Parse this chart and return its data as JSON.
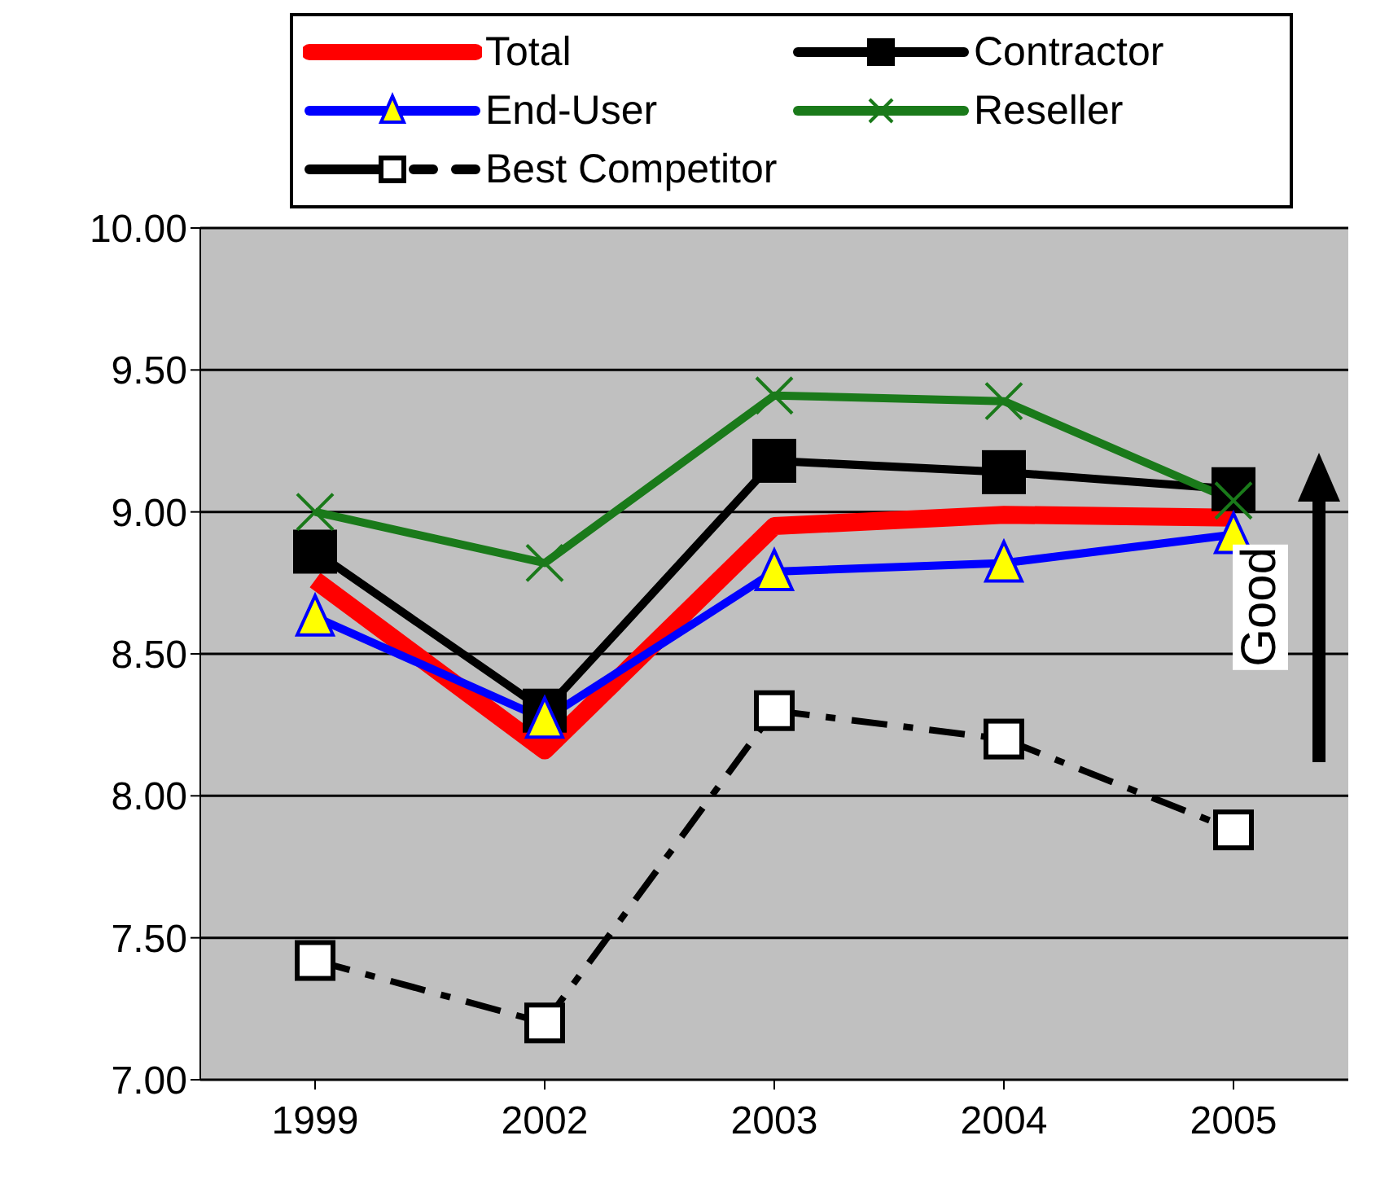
{
  "chart_data": {
    "type": "line",
    "categories": [
      "1999",
      "2002",
      "2003",
      "2004",
      "2005"
    ],
    "series": [
      {
        "name": "Total",
        "color": "#ff0000",
        "values": [
          8.76,
          8.16,
          8.95,
          8.99,
          8.98
        ],
        "marker": "none"
      },
      {
        "name": "Contractor",
        "color": "#000000",
        "values": [
          8.86,
          8.3,
          9.18,
          9.14,
          9.08
        ],
        "marker": "square"
      },
      {
        "name": "End-User",
        "color": "#0000ff",
        "values": [
          8.63,
          8.27,
          8.79,
          8.82,
          8.92
        ],
        "marker": "triangle"
      },
      {
        "name": "Reseller",
        "color": "#1a7a1a",
        "values": [
          9.0,
          8.82,
          9.41,
          9.39,
          9.04
        ],
        "marker": "cross"
      },
      {
        "name": "Best Competitor",
        "color": "#000000",
        "values": [
          7.42,
          7.2,
          8.3,
          8.2,
          7.88
        ],
        "marker": "square",
        "line_style": "dashed"
      }
    ],
    "ylim": [
      7,
      10
    ],
    "yticks": [
      {
        "value": 7,
        "label": "7.00"
      },
      {
        "value": 7.5,
        "label": "7.50"
      },
      {
        "value": 8,
        "label": "8.00"
      },
      {
        "value": 8.5,
        "label": "8.50"
      },
      {
        "value": 9,
        "label": "9.00"
      },
      {
        "value": 9.5,
        "label": "9.50"
      },
      {
        "value": 10,
        "label": "10.00"
      }
    ],
    "grid": "y",
    "legend": "top",
    "annotations": [
      "Good"
    ]
  }
}
